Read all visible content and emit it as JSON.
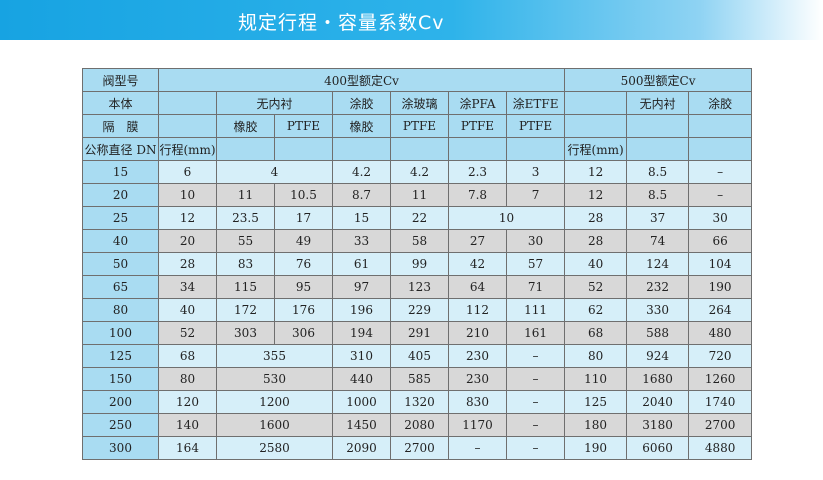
{
  "header": {
    "title": "规定行程・容量系数Cv",
    "banner_color": "#17a3e2"
  },
  "table": {
    "rows": [
      [
        {
          "t": "阀型号"
        },
        {
          "t": "400型额定Cv",
          "cs": 7
        },
        {
          "t": "500型额定Cv",
          "cs": 3
        }
      ],
      [
        {
          "t": "本体"
        },
        {
          "t": ""
        },
        {
          "t": "无内衬",
          "cs": 2
        },
        {
          "t": "涂胶"
        },
        {
          "t": "涂玻璃"
        },
        {
          "t": "涂PFA"
        },
        {
          "t": "涂ETFE"
        },
        {
          "t": ""
        },
        {
          "t": "无内衬"
        },
        {
          "t": "涂胶"
        }
      ],
      [
        {
          "t": "隔　膜"
        },
        {
          "t": ""
        },
        {
          "t": "橡胶"
        },
        {
          "t": "PTFE"
        },
        {
          "t": "橡胶"
        },
        {
          "t": "PTFE"
        },
        {
          "t": "PTFE"
        },
        {
          "t": "PTFE"
        },
        {
          "t": ""
        },
        {
          "t": ""
        },
        {
          "t": ""
        }
      ],
      [
        {
          "t": "公称直径 DN"
        },
        {
          "t": "行程(mm)",
          "l": true
        },
        {
          "t": ""
        },
        {
          "t": ""
        },
        {
          "t": ""
        },
        {
          "t": ""
        },
        {
          "t": ""
        },
        {
          "t": ""
        },
        {
          "t": "行程(mm)",
          "l": true
        },
        {
          "t": ""
        },
        {
          "t": ""
        }
      ],
      [
        {
          "t": "15"
        },
        {
          "t": "6"
        },
        {
          "t": "4",
          "cs": 2
        },
        {
          "t": "4.2"
        },
        {
          "t": "4.2"
        },
        {
          "t": "2.3"
        },
        {
          "t": "3"
        },
        {
          "t": "12"
        },
        {
          "t": "8.5"
        },
        {
          "t": "–"
        }
      ],
      [
        {
          "t": "20"
        },
        {
          "t": "10"
        },
        {
          "t": "11"
        },
        {
          "t": "10.5"
        },
        {
          "t": "8.7"
        },
        {
          "t": "11"
        },
        {
          "t": "7.8"
        },
        {
          "t": "7"
        },
        {
          "t": "12"
        },
        {
          "t": "8.5"
        },
        {
          "t": "–"
        }
      ],
      [
        {
          "t": "25"
        },
        {
          "t": "12"
        },
        {
          "t": "23.5"
        },
        {
          "t": "17"
        },
        {
          "t": "15"
        },
        {
          "t": "22"
        },
        {
          "t": "10",
          "cs": 2
        },
        {
          "t": "28"
        },
        {
          "t": "37"
        },
        {
          "t": "30"
        }
      ],
      [
        {
          "t": "40"
        },
        {
          "t": "20"
        },
        {
          "t": "55"
        },
        {
          "t": "49"
        },
        {
          "t": "33"
        },
        {
          "t": "58"
        },
        {
          "t": "27"
        },
        {
          "t": "30"
        },
        {
          "t": "28"
        },
        {
          "t": "74"
        },
        {
          "t": "66"
        }
      ],
      [
        {
          "t": "50"
        },
        {
          "t": "28"
        },
        {
          "t": "83"
        },
        {
          "t": "76"
        },
        {
          "t": "61"
        },
        {
          "t": "99"
        },
        {
          "t": "42"
        },
        {
          "t": "57"
        },
        {
          "t": "40"
        },
        {
          "t": "124"
        },
        {
          "t": "104"
        }
      ],
      [
        {
          "t": "65"
        },
        {
          "t": "34"
        },
        {
          "t": "115"
        },
        {
          "t": "95"
        },
        {
          "t": "97"
        },
        {
          "t": "123"
        },
        {
          "t": "64"
        },
        {
          "t": "71"
        },
        {
          "t": "52"
        },
        {
          "t": "232"
        },
        {
          "t": "190"
        }
      ],
      [
        {
          "t": "80"
        },
        {
          "t": "40"
        },
        {
          "t": "172"
        },
        {
          "t": "176"
        },
        {
          "t": "196"
        },
        {
          "t": "229"
        },
        {
          "t": "112"
        },
        {
          "t": "111"
        },
        {
          "t": "62"
        },
        {
          "t": "330"
        },
        {
          "t": "264"
        }
      ],
      [
        {
          "t": "100"
        },
        {
          "t": "52"
        },
        {
          "t": "303"
        },
        {
          "t": "306"
        },
        {
          "t": "194"
        },
        {
          "t": "291"
        },
        {
          "t": "210"
        },
        {
          "t": "161"
        },
        {
          "t": "68"
        },
        {
          "t": "588"
        },
        {
          "t": "480"
        }
      ],
      [
        {
          "t": "125"
        },
        {
          "t": "68"
        },
        {
          "t": "355",
          "cs": 2
        },
        {
          "t": "310"
        },
        {
          "t": "405"
        },
        {
          "t": "230"
        },
        {
          "t": "–"
        },
        {
          "t": "80"
        },
        {
          "t": "924"
        },
        {
          "t": "720"
        }
      ],
      [
        {
          "t": "150"
        },
        {
          "t": "80"
        },
        {
          "t": "530",
          "cs": 2
        },
        {
          "t": "440"
        },
        {
          "t": "585"
        },
        {
          "t": "230"
        },
        {
          "t": "–"
        },
        {
          "t": "110"
        },
        {
          "t": "1680"
        },
        {
          "t": "1260"
        }
      ],
      [
        {
          "t": "200"
        },
        {
          "t": "120"
        },
        {
          "t": "1200",
          "cs": 2
        },
        {
          "t": "1000"
        },
        {
          "t": "1320"
        },
        {
          "t": "830"
        },
        {
          "t": "–"
        },
        {
          "t": "125"
        },
        {
          "t": "2040"
        },
        {
          "t": "1740"
        }
      ],
      [
        {
          "t": "250"
        },
        {
          "t": "140"
        },
        {
          "t": "1600",
          "cs": 2
        },
        {
          "t": "1450"
        },
        {
          "t": "2080"
        },
        {
          "t": "1170"
        },
        {
          "t": "–"
        },
        {
          "t": "180"
        },
        {
          "t": "3180"
        },
        {
          "t": "2700"
        }
      ],
      [
        {
          "t": "300"
        },
        {
          "t": "164"
        },
        {
          "t": "2580",
          "cs": 2
        },
        {
          "t": "2090"
        },
        {
          "t": "2700"
        },
        {
          "t": "–"
        },
        {
          "t": "–"
        },
        {
          "t": "190"
        },
        {
          "t": "6060"
        },
        {
          "t": "4880"
        }
      ]
    ]
  }
}
